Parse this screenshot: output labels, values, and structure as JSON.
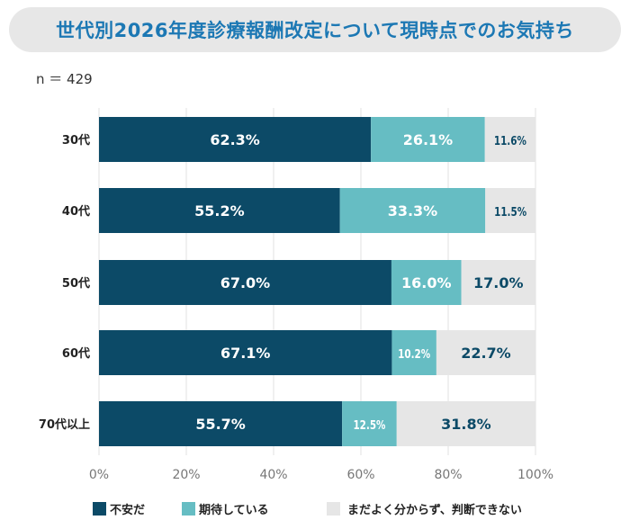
{
  "title": "世代別2026年度診療報酬改定について現時点でのお気持ち",
  "sample_size": "n ＝ 429",
  "chart_data": {
    "type": "bar",
    "orientation": "horizontal",
    "stacked": true,
    "categories": [
      "30代",
      "40代",
      "50代",
      "60代",
      "70代以上"
    ],
    "series": [
      {
        "name": "不安だ",
        "color": "#0c4a67",
        "values": [
          62.3,
          55.2,
          67.0,
          67.1,
          55.7
        ],
        "labels": [
          "62.3%",
          "55.2%",
          "67.0%",
          "67.1%",
          "55.7%"
        ]
      },
      {
        "name": "期待している",
        "color": "#66bdc3",
        "values": [
          26.1,
          33.3,
          16.0,
          10.2,
          12.5
        ],
        "labels": [
          "26.1%",
          "33.3%",
          "16.0%",
          "10.2%",
          "12.5%"
        ]
      },
      {
        "name": "まだよく分からず、判断できない",
        "color": "#e6e6e6",
        "values": [
          11.6,
          11.5,
          17.0,
          22.7,
          31.8
        ],
        "labels": [
          "11.6%",
          "11.5%",
          "17.0%",
          "22.7%",
          "31.8%"
        ]
      }
    ],
    "xlim": [
      0,
      100
    ],
    "xticks": [
      "0%",
      "20%",
      "40%",
      "60%",
      "80%",
      "100%"
    ],
    "grid": true,
    "legend": "bottom"
  }
}
